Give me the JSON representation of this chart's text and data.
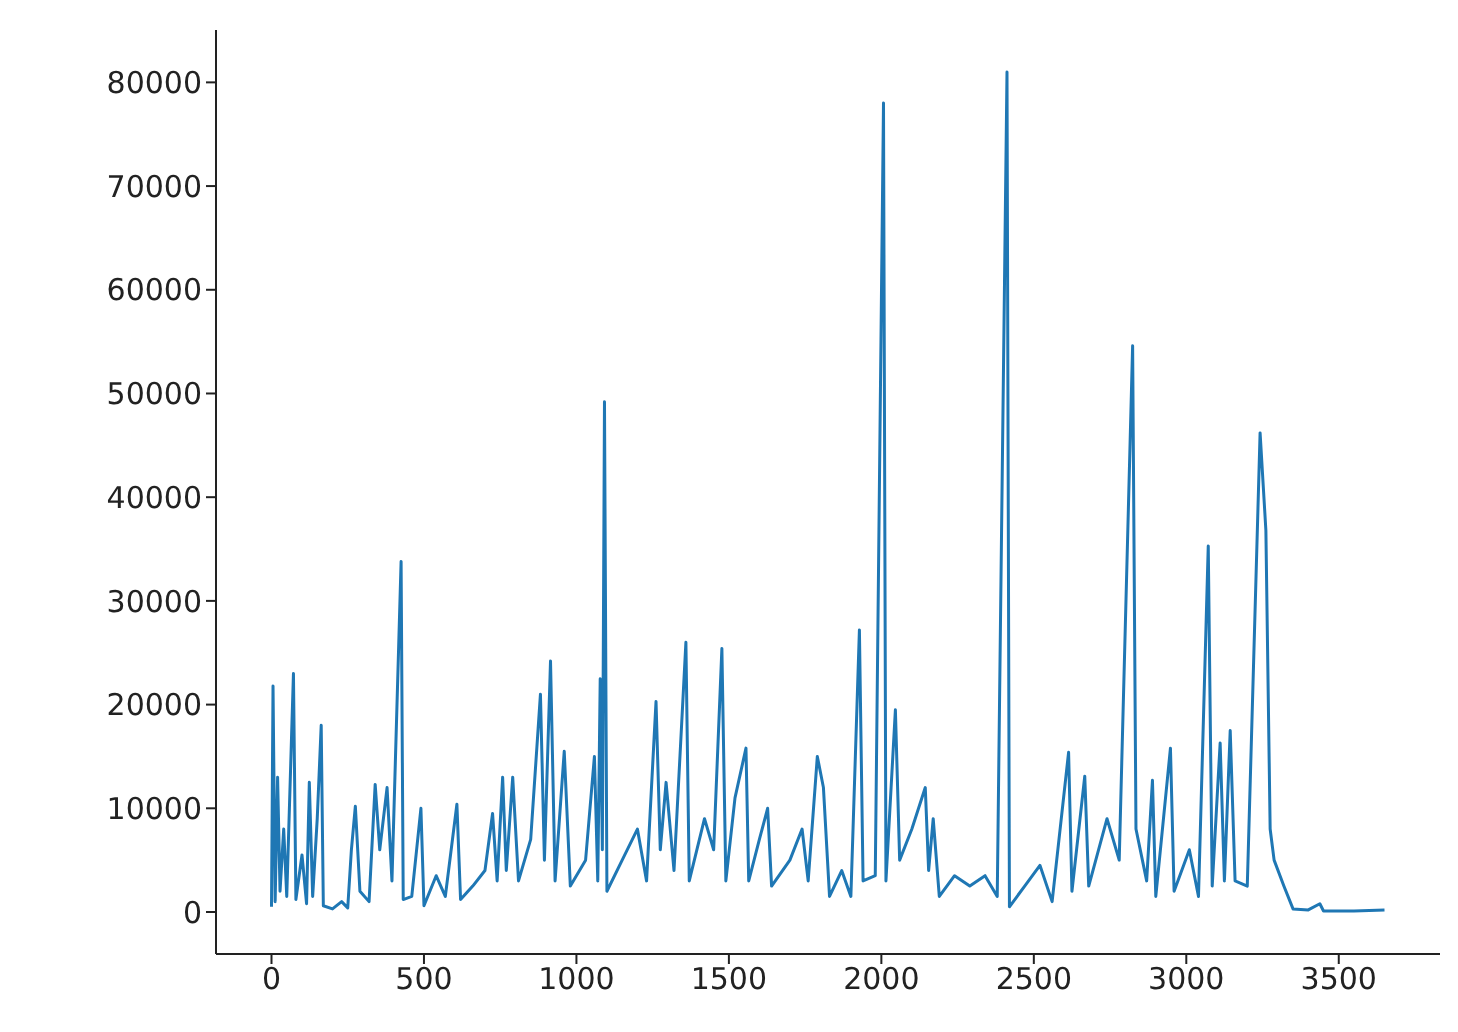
{
  "chart_data": {
    "type": "line",
    "x": [
      0,
      5,
      12,
      20,
      28,
      40,
      50,
      72,
      80,
      100,
      115,
      124,
      135,
      150,
      163,
      170,
      200,
      230,
      250,
      262,
      275,
      290,
      320,
      340,
      355,
      379,
      395,
      425,
      432,
      460,
      490,
      500,
      540,
      570,
      608,
      620,
      660,
      700,
      725,
      740,
      758,
      770,
      791,
      810,
      850,
      882,
      895,
      915,
      930,
      960,
      980,
      1030,
      1059,
      1070,
      1078,
      1085,
      1092,
      1100,
      1150,
      1200,
      1230,
      1261,
      1275,
      1294,
      1320,
      1359,
      1370,
      1420,
      1450,
      1477,
      1490,
      1520,
      1556,
      1565,
      1600,
      1627,
      1640,
      1700,
      1740,
      1760,
      1790,
      1810,
      1830,
      1870,
      1900,
      1928,
      1940,
      1980,
      2007,
      2015,
      2046,
      2060,
      2100,
      2144,
      2155,
      2170,
      2190,
      2240,
      2290,
      2340,
      2380,
      2412,
      2420,
      2470,
      2520,
      2560,
      2614,
      2625,
      2667,
      2680,
      2740,
      2780,
      2824,
      2835,
      2870,
      2889,
      2900,
      2948,
      2960,
      3010,
      3040,
      3072,
      3085,
      3111,
      3125,
      3144,
      3160,
      3200,
      3242,
      3261,
      3275,
      3288,
      3320,
      3350,
      3400,
      3438,
      3450,
      3550,
      3650
    ],
    "series": [
      {
        "color": "#1f77b4",
        "values": [
          500,
          21800,
          1000,
          13000,
          2000,
          8000,
          1500,
          23000,
          1200,
          5500,
          800,
          12500,
          1500,
          9000,
          18000,
          600,
          300,
          1000,
          400,
          6000,
          10200,
          2000,
          1000,
          12300,
          6000,
          12000,
          3000,
          33800,
          1200,
          1500,
          10000,
          600,
          3500,
          1500,
          10400,
          1200,
          2500,
          4000,
          9500,
          3000,
          13000,
          4000,
          13000,
          3000,
          7000,
          21000,
          5000,
          24200,
          3000,
          15500,
          2500,
          5000,
          15000,
          3000,
          22500,
          6000,
          49200,
          2000,
          5000,
          8000,
          3000,
          20300,
          6000,
          12500,
          4000,
          26000,
          3000,
          9000,
          6000,
          25400,
          3000,
          11000,
          15800,
          3000,
          7000,
          10000,
          2500,
          5000,
          8000,
          3000,
          15000,
          12000,
          1500,
          4000,
          1500,
          27200,
          3000,
          3500,
          78000,
          3000,
          19500,
          5000,
          8000,
          12000,
          4000,
          9000,
          1500,
          3500,
          2500,
          3500,
          1500,
          81000,
          500,
          2500,
          4500,
          1000,
          15400,
          2000,
          13100,
          2500,
          9000,
          5000,
          54600,
          8000,
          3000,
          12700,
          1500,
          15800,
          2000,
          6000,
          1500,
          35300,
          2500,
          16300,
          3000,
          17500,
          3000,
          2500,
          46200,
          36800,
          8000,
          5000,
          2500,
          300,
          200,
          800,
          100,
          100,
          200
        ]
      }
    ],
    "xlim": [
      -182,
      3832
    ],
    "xticks": [
      0,
      500,
      1000,
      1500,
      2000,
      2500,
      3000,
      3500
    ],
    "ylim": [
      -4050,
      85050
    ],
    "yticks": [
      0,
      10000,
      20000,
      30000,
      40000,
      50000,
      60000,
      70000,
      80000
    ],
    "grid": false,
    "legend": false,
    "marker": "none",
    "line_style": "solid"
  }
}
